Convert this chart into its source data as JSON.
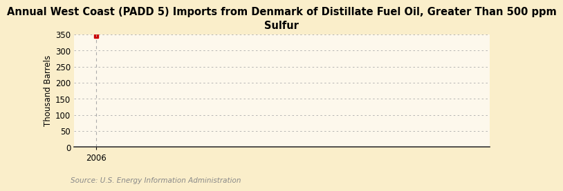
{
  "title": "Annual West Coast (PADD 5) Imports from Denmark of Distillate Fuel Oil, Greater Than 500 ppm\nSulfur",
  "ylabel": "Thousand Barrels",
  "source": "Source: U.S. Energy Information Administration",
  "x_data": [
    2006
  ],
  "y_data": [
    345
  ],
  "xlim": [
    2005.4,
    2016.5
  ],
  "ylim": [
    0,
    350
  ],
  "yticks": [
    0,
    50,
    100,
    150,
    200,
    250,
    300,
    350
  ],
  "xticks": [
    2006
  ],
  "background_color": "#faeeca",
  "plot_bg_color": "#fdf8ec",
  "grid_color": "#aaaaaa",
  "vline_color": "#aaaaaa",
  "marker_color": "#cc0000",
  "bottom_spine_color": "#333333",
  "title_fontsize": 10.5,
  "label_fontsize": 8.5,
  "tick_fontsize": 8.5,
  "source_fontsize": 7.5,
  "source_color": "#888888"
}
